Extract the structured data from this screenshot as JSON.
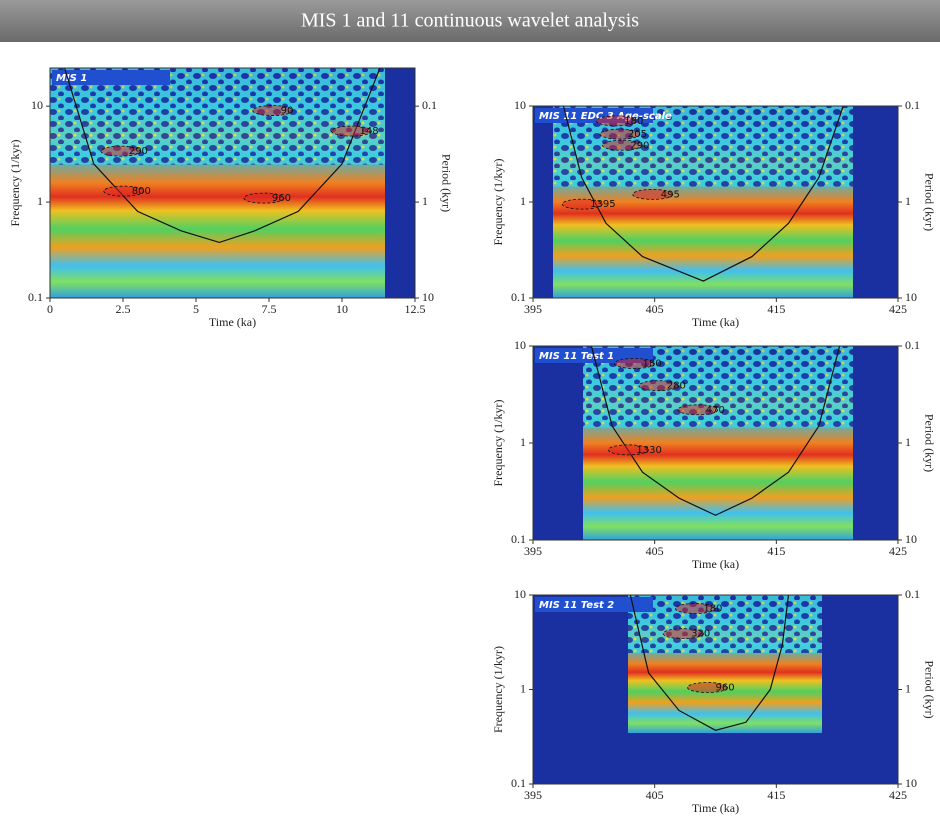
{
  "title": "MIS 1 and 11 continuous wavelet analysis",
  "chart_data": [
    {
      "type": "heatmap",
      "title": "MIS 1",
      "xlabel": "Time (ka)",
      "ylabel": "Frequency (1/kyr)",
      "y2label": "Period (kyr)",
      "xlim": [
        0,
        12.5
      ],
      "xticks": [
        0,
        2.5,
        5,
        7.5,
        10,
        12.5
      ],
      "ylim": [
        0.1,
        25
      ],
      "yticks": [
        0.1,
        1,
        10
      ],
      "y2lim": [
        10,
        0.04
      ],
      "y2ticks": [
        10,
        1,
        0.1
      ],
      "log_y": true,
      "cone": {
        "x": [
          0.5,
          1.5,
          3,
          4.5,
          5.8,
          7,
          8.5,
          10,
          11.3
        ],
        "y": [
          25,
          2.5,
          0.8,
          0.5,
          0.38,
          0.5,
          0.8,
          2.5,
          25
        ]
      },
      "annotations": [
        {
          "text": "90",
          "x": 7.9,
          "y": 9
        },
        {
          "text": "148",
          "x": 10.6,
          "y": 5.5
        },
        {
          "text": "290",
          "x": 2.7,
          "y": 3.4
        },
        {
          "text": "800",
          "x": 2.8,
          "y": 1.3
        },
        {
          "text": "960",
          "x": 7.6,
          "y": 1.1
        }
      ]
    },
    {
      "type": "heatmap",
      "title": "MIS 11 EDC 3 Age-scale",
      "xlabel": "Time (ka)",
      "ylabel": "Frequency (1/kyr)",
      "y2label": "Period (kyr)",
      "xlim": [
        395,
        425
      ],
      "xticks": [
        395,
        405,
        415,
        425
      ],
      "ylim": [
        0.1,
        10
      ],
      "yticks": [
        0.1,
        1,
        10
      ],
      "y2lim": [
        10,
        0.1
      ],
      "y2ticks": [
        10,
        1,
        0.1
      ],
      "log_y": true,
      "cone": {
        "x": [
          397.5,
          399,
          401,
          404,
          409,
          413,
          416,
          418.5,
          420.5
        ],
        "y": [
          10,
          1.8,
          0.6,
          0.27,
          0.15,
          0.27,
          0.6,
          1.8,
          10
        ]
      },
      "annotations": [
        {
          "text": "180",
          "x": 402.5,
          "y": 7
        },
        {
          "text": "205",
          "x": 402.8,
          "y": 5.1
        },
        {
          "text": "290",
          "x": 403,
          "y": 3.9
        },
        {
          "text": "495",
          "x": 405.5,
          "y": 1.2
        },
        {
          "text": "1395",
          "x": 399.7,
          "y": 0.95
        }
      ]
    },
    {
      "type": "heatmap",
      "title": "MIS 11 Test 1",
      "xlabel": "Time (ka)",
      "ylabel": "Frequency (1/kyr)",
      "y2label": "Period (kyr)",
      "xlim": [
        395,
        425
      ],
      "xticks": [
        395,
        405,
        415,
        425
      ],
      "ylim": [
        0.1,
        10
      ],
      "yticks": [
        0.1,
        1,
        10
      ],
      "y2lim": [
        10,
        0.1
      ],
      "y2ticks": [
        10,
        1,
        0.1
      ],
      "log_y": true,
      "cone": {
        "x": [
          399.8,
          401.5,
          404,
          407,
          410,
          413,
          416,
          418.5,
          420.2
        ],
        "y": [
          10,
          1.5,
          0.5,
          0.27,
          0.18,
          0.27,
          0.5,
          1.5,
          10
        ]
      },
      "annotations": [
        {
          "text": "180",
          "x": 404,
          "y": 6.6
        },
        {
          "text": "280",
          "x": 406,
          "y": 3.9
        },
        {
          "text": "470",
          "x": 409.2,
          "y": 2.2
        },
        {
          "text": "1330",
          "x": 403.5,
          "y": 0.85
        }
      ]
    },
    {
      "type": "heatmap",
      "title": "MIS 11 Test 2",
      "xlabel": "Time (ka)",
      "ylabel": "Frequency (1/kyr)",
      "y2label": "Period (kyr)",
      "xlim": [
        395,
        425
      ],
      "xticks": [
        395,
        405,
        415,
        425
      ],
      "ylim": [
        0.1,
        10
      ],
      "yticks": [
        0.1,
        1,
        10
      ],
      "y2lim": [
        10,
        0.1
      ],
      "y2ticks": [
        10,
        1,
        0.1
      ],
      "log_y": true,
      "cone": {
        "x": [
          403,
          404.5,
          407,
          410,
          412.5,
          414.5,
          415.5,
          416
        ],
        "y": [
          10,
          1.5,
          0.6,
          0.37,
          0.45,
          1,
          3,
          10
        ]
      },
      "annotations": [
        {
          "text": "180",
          "x": 409,
          "y": 7.2
        },
        {
          "text": "320",
          "x": 408,
          "y": 3.9
        },
        {
          "text": "960",
          "x": 410,
          "y": 1.05
        }
      ]
    }
  ]
}
